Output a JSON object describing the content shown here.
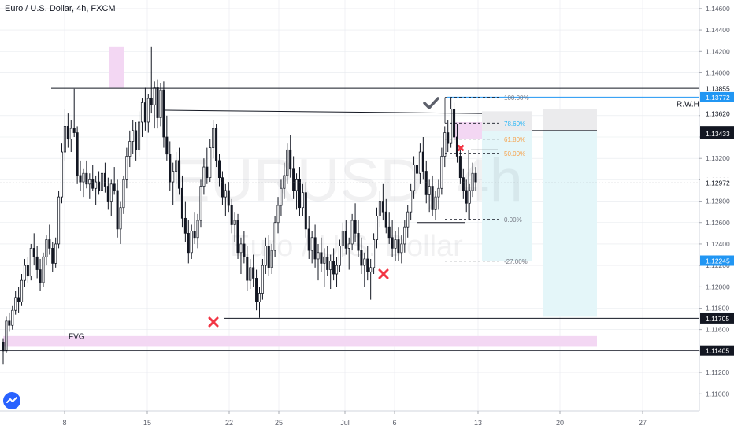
{
  "title": "Euro / U.S. Dollar, 4h, FXCM",
  "watermark": {
    "symbol": "EURUSD, 4h",
    "name": "Euro / U.S. Dollar"
  },
  "colors": {
    "candle": "#131722",
    "grid": "#e6e9ee",
    "level_line": "#131722",
    "blue_line": "#2196f3",
    "fvg_fill": "#f3d7f3",
    "cross": "#f23645",
    "check": "#5d606b",
    "target_zone": "#e4f6f9",
    "stop_zone": "#ebebed",
    "fib_text": "#787b86",
    "fib_blue": "#29b6f6",
    "fib_orange": "#f7a24b",
    "price_tag_dark": "#131722",
    "price_tag_blue": "#2196f3"
  },
  "chart_data": {
    "type": "candlestick",
    "symbol": "EURUSD",
    "timeframe": "4h",
    "source": "FXCM",
    "y_ticks": [
      "1.14600",
      "1.14400",
      "1.14200",
      "1.14000",
      "1.13800",
      "1.13600",
      "1.13400",
      "1.13200",
      "1.13000",
      "1.12800",
      "1.12600",
      "1.12400",
      "1.12200",
      "1.12000",
      "1.11800",
      "1.11600",
      "1.11400",
      "1.11200",
      "1.11000"
    ],
    "ylim": [
      1.1084,
      1.1468
    ],
    "x_ticks": [
      "8",
      "15",
      "22",
      "25",
      "Jul",
      "6",
      "13",
      "20",
      "27"
    ],
    "price_labels": [
      {
        "text": "1.13855",
        "style": "plain"
      },
      {
        "text": "1.13772",
        "style": "blue"
      },
      {
        "text": "1.13641",
        "style": "plain"
      },
      {
        "text": "1.13620",
        "style": "plain"
      },
      {
        "text": "1.13454",
        "style": "dark"
      },
      {
        "text": "1.13433",
        "style": "dark"
      },
      {
        "text": "1.12972",
        "style": "plain"
      },
      {
        "text": "1.12245",
        "style": "blue"
      },
      {
        "text": "1.11712",
        "style": "blue"
      },
      {
        "text": "1.11705",
        "style": "dark"
      },
      {
        "text": "1.11405",
        "style": "dark"
      }
    ],
    "horizontal_levels": [
      {
        "price": 1.13855
      },
      {
        "price": 1.1362
      },
      {
        "price": 1.11705
      },
      {
        "price": 1.11405
      }
    ],
    "annotations": {
      "fvg_label": "FVG",
      "rwh_label": "R.W.H",
      "fib_levels": [
        {
          "label": "100.00%",
          "price": 1.1377
        },
        {
          "label": "78.60%",
          "price": 1.1353
        },
        {
          "label": "61.80%",
          "price": 1.1338
        },
        {
          "label": "50.00%",
          "price": 1.1325
        },
        {
          "label": "0.00%",
          "price": 1.1263
        },
        {
          "label": "-27.00%",
          "price": 1.1224
        }
      ]
    },
    "candles": [
      {
        "o": 1.1148,
        "h": 1.1152,
        "l": 1.1128,
        "c": 1.114
      },
      {
        "o": 1.114,
        "h": 1.1172,
        "l": 1.1138,
        "c": 1.1168
      },
      {
        "o": 1.1168,
        "h": 1.1176,
        "l": 1.1158,
        "c": 1.1164
      },
      {
        "o": 1.1164,
        "h": 1.1182,
        "l": 1.116,
        "c": 1.1178
      },
      {
        "o": 1.1178,
        "h": 1.1196,
        "l": 1.1174,
        "c": 1.119
      },
      {
        "o": 1.119,
        "h": 1.12,
        "l": 1.1176,
        "c": 1.1186
      },
      {
        "o": 1.1186,
        "h": 1.1212,
        "l": 1.1182,
        "c": 1.1206
      },
      {
        "o": 1.1206,
        "h": 1.1226,
        "l": 1.12,
        "c": 1.122
      },
      {
        "o": 1.122,
        "h": 1.1228,
        "l": 1.1204,
        "c": 1.121
      },
      {
        "o": 1.121,
        "h": 1.124,
        "l": 1.1206,
        "c": 1.1236
      },
      {
        "o": 1.1236,
        "h": 1.125,
        "l": 1.122,
        "c": 1.1228
      },
      {
        "o": 1.1228,
        "h": 1.1238,
        "l": 1.1208,
        "c": 1.1216
      },
      {
        "o": 1.1216,
        "h": 1.1226,
        "l": 1.1196,
        "c": 1.1204
      },
      {
        "o": 1.1204,
        "h": 1.1232,
        "l": 1.12,
        "c": 1.1228
      },
      {
        "o": 1.1228,
        "h": 1.1248,
        "l": 1.122,
        "c": 1.1244
      },
      {
        "o": 1.1244,
        "h": 1.1258,
        "l": 1.123,
        "c": 1.1236
      },
      {
        "o": 1.1236,
        "h": 1.1242,
        "l": 1.1214,
        "c": 1.1222
      },
      {
        "o": 1.1222,
        "h": 1.1246,
        "l": 1.1218,
        "c": 1.124
      },
      {
        "o": 1.124,
        "h": 1.129,
        "l": 1.1236,
        "c": 1.1284
      },
      {
        "o": 1.1284,
        "h": 1.1334,
        "l": 1.1278,
        "c": 1.1326
      },
      {
        "o": 1.1326,
        "h": 1.1366,
        "l": 1.1318,
        "c": 1.135
      },
      {
        "o": 1.135,
        "h": 1.1362,
        "l": 1.133,
        "c": 1.1338
      },
      {
        "o": 1.1338,
        "h": 1.1356,
        "l": 1.1326,
        "c": 1.1348
      },
      {
        "o": 1.1348,
        "h": 1.1385,
        "l": 1.134,
        "c": 1.1344
      },
      {
        "o": 1.1344,
        "h": 1.135,
        "l": 1.1296,
        "c": 1.1304
      },
      {
        "o": 1.1304,
        "h": 1.1318,
        "l": 1.129,
        "c": 1.1298
      },
      {
        "o": 1.1298,
        "h": 1.131,
        "l": 1.1284,
        "c": 1.1306
      },
      {
        "o": 1.1306,
        "h": 1.1318,
        "l": 1.1292,
        "c": 1.1296
      },
      {
        "o": 1.1296,
        "h": 1.1306,
        "l": 1.1282,
        "c": 1.13
      },
      {
        "o": 1.13,
        "h": 1.1314,
        "l": 1.129,
        "c": 1.1292
      },
      {
        "o": 1.1292,
        "h": 1.1304,
        "l": 1.1276,
        "c": 1.1298
      },
      {
        "o": 1.1298,
        "h": 1.1308,
        "l": 1.1286,
        "c": 1.129
      },
      {
        "o": 1.129,
        "h": 1.131,
        "l": 1.1284,
        "c": 1.1306
      },
      {
        "o": 1.1306,
        "h": 1.1316,
        "l": 1.1288,
        "c": 1.1294
      },
      {
        "o": 1.1294,
        "h": 1.1302,
        "l": 1.1272,
        "c": 1.128
      },
      {
        "o": 1.128,
        "h": 1.13,
        "l": 1.1266,
        "c": 1.1296
      },
      {
        "o": 1.1296,
        "h": 1.1312,
        "l": 1.1286,
        "c": 1.129
      },
      {
        "o": 1.129,
        "h": 1.13,
        "l": 1.1246,
        "c": 1.1254
      },
      {
        "o": 1.1254,
        "h": 1.128,
        "l": 1.124,
        "c": 1.1274
      },
      {
        "o": 1.1274,
        "h": 1.1304,
        "l": 1.1268,
        "c": 1.13
      },
      {
        "o": 1.13,
        "h": 1.133,
        "l": 1.1292,
        "c": 1.1322
      },
      {
        "o": 1.1322,
        "h": 1.1346,
        "l": 1.1312,
        "c": 1.1336
      },
      {
        "o": 1.1336,
        "h": 1.1356,
        "l": 1.1324,
        "c": 1.1346
      },
      {
        "o": 1.1346,
        "h": 1.1354,
        "l": 1.1318,
        "c": 1.1328
      },
      {
        "o": 1.1328,
        "h": 1.1364,
        "l": 1.1322,
        "c": 1.1354
      },
      {
        "o": 1.1354,
        "h": 1.1376,
        "l": 1.134,
        "c": 1.1372
      },
      {
        "o": 1.1372,
        "h": 1.1386,
        "l": 1.1346,
        "c": 1.1354
      },
      {
        "o": 1.1354,
        "h": 1.138,
        "l": 1.1344,
        "c": 1.1376
      },
      {
        "o": 1.1376,
        "h": 1.1424,
        "l": 1.1362,
        "c": 1.137
      },
      {
        "o": 1.137,
        "h": 1.1392,
        "l": 1.1348,
        "c": 1.1386
      },
      {
        "o": 1.1386,
        "h": 1.1394,
        "l": 1.1348,
        "c": 1.1358
      },
      {
        "o": 1.1358,
        "h": 1.139,
        "l": 1.135,
        "c": 1.1384
      },
      {
        "o": 1.1384,
        "h": 1.1392,
        "l": 1.133,
        "c": 1.134
      },
      {
        "o": 1.134,
        "h": 1.136,
        "l": 1.1318,
        "c": 1.1324
      },
      {
        "o": 1.1324,
        "h": 1.1336,
        "l": 1.129,
        "c": 1.1298
      },
      {
        "o": 1.1298,
        "h": 1.1316,
        "l": 1.1276,
        "c": 1.1308
      },
      {
        "o": 1.1308,
        "h": 1.1326,
        "l": 1.1296,
        "c": 1.1318
      },
      {
        "o": 1.1318,
        "h": 1.133,
        "l": 1.1286,
        "c": 1.1292
      },
      {
        "o": 1.1292,
        "h": 1.1304,
        "l": 1.1256,
        "c": 1.1264
      },
      {
        "o": 1.1264,
        "h": 1.128,
        "l": 1.1242,
        "c": 1.125
      },
      {
        "o": 1.125,
        "h": 1.1262,
        "l": 1.1222,
        "c": 1.1232
      },
      {
        "o": 1.1232,
        "h": 1.1258,
        "l": 1.1226,
        "c": 1.1252
      },
      {
        "o": 1.1252,
        "h": 1.127,
        "l": 1.124,
        "c": 1.1246
      },
      {
        "o": 1.1246,
        "h": 1.1268,
        "l": 1.1236,
        "c": 1.1262
      },
      {
        "o": 1.1262,
        "h": 1.13,
        "l": 1.1256,
        "c": 1.1294
      },
      {
        "o": 1.1294,
        "h": 1.132,
        "l": 1.1286,
        "c": 1.1312
      },
      {
        "o": 1.1312,
        "h": 1.133,
        "l": 1.1296,
        "c": 1.1302
      },
      {
        "o": 1.1302,
        "h": 1.1338,
        "l": 1.1298,
        "c": 1.133
      },
      {
        "o": 1.133,
        "h": 1.1356,
        "l": 1.132,
        "c": 1.1348
      },
      {
        "o": 1.1348,
        "h": 1.1352,
        "l": 1.1312,
        "c": 1.1318
      },
      {
        "o": 1.1318,
        "h": 1.1324,
        "l": 1.1294,
        "c": 1.1302
      },
      {
        "o": 1.1302,
        "h": 1.1308,
        "l": 1.1276,
        "c": 1.1284
      },
      {
        "o": 1.1284,
        "h": 1.1296,
        "l": 1.1266,
        "c": 1.129
      },
      {
        "o": 1.129,
        "h": 1.1298,
        "l": 1.127,
        "c": 1.1276
      },
      {
        "o": 1.1276,
        "h": 1.1282,
        "l": 1.125,
        "c": 1.1258
      },
      {
        "o": 1.1258,
        "h": 1.127,
        "l": 1.1242,
        "c": 1.1262
      },
      {
        "o": 1.1262,
        "h": 1.1268,
        "l": 1.1226,
        "c": 1.1232
      },
      {
        "o": 1.1232,
        "h": 1.1246,
        "l": 1.1212,
        "c": 1.124
      },
      {
        "o": 1.124,
        "h": 1.1252,
        "l": 1.1222,
        "c": 1.1228
      },
      {
        "o": 1.1228,
        "h": 1.1238,
        "l": 1.1196,
        "c": 1.1206
      },
      {
        "o": 1.1206,
        "h": 1.1226,
        "l": 1.1198,
        "c": 1.1218
      },
      {
        "o": 1.1218,
        "h": 1.123,
        "l": 1.12,
        "c": 1.1208
      },
      {
        "o": 1.1208,
        "h": 1.1216,
        "l": 1.1178,
        "c": 1.1186
      },
      {
        "o": 1.1186,
        "h": 1.12,
        "l": 1.1171,
        "c": 1.1194
      },
      {
        "o": 1.1194,
        "h": 1.1226,
        "l": 1.1188,
        "c": 1.122
      },
      {
        "o": 1.122,
        "h": 1.1246,
        "l": 1.1212,
        "c": 1.1238
      },
      {
        "o": 1.1238,
        "h": 1.1248,
        "l": 1.121,
        "c": 1.1218
      },
      {
        "o": 1.1218,
        "h": 1.124,
        "l": 1.1212,
        "c": 1.1234
      },
      {
        "o": 1.1234,
        "h": 1.1266,
        "l": 1.1228,
        "c": 1.126
      },
      {
        "o": 1.126,
        "h": 1.1284,
        "l": 1.125,
        "c": 1.1276
      },
      {
        "o": 1.1276,
        "h": 1.13,
        "l": 1.1266,
        "c": 1.1292
      },
      {
        "o": 1.1292,
        "h": 1.1316,
        "l": 1.1282,
        "c": 1.1304
      },
      {
        "o": 1.1304,
        "h": 1.1334,
        "l": 1.1296,
        "c": 1.1328
      },
      {
        "o": 1.1328,
        "h": 1.1342,
        "l": 1.1302,
        "c": 1.131
      },
      {
        "o": 1.131,
        "h": 1.1322,
        "l": 1.1282,
        "c": 1.129
      },
      {
        "o": 1.129,
        "h": 1.1306,
        "l": 1.1272,
        "c": 1.13
      },
      {
        "o": 1.13,
        "h": 1.1312,
        "l": 1.1266,
        "c": 1.1274
      },
      {
        "o": 1.1274,
        "h": 1.1296,
        "l": 1.1266,
        "c": 1.1288
      },
      {
        "o": 1.1288,
        "h": 1.1298,
        "l": 1.1246,
        "c": 1.1254
      },
      {
        "o": 1.1254,
        "h": 1.1266,
        "l": 1.1226,
        "c": 1.1234
      },
      {
        "o": 1.1234,
        "h": 1.1252,
        "l": 1.1222,
        "c": 1.1246
      },
      {
        "o": 1.1246,
        "h": 1.1258,
        "l": 1.1218,
        "c": 1.1226
      },
      {
        "o": 1.1226,
        "h": 1.124,
        "l": 1.1206,
        "c": 1.1232
      },
      {
        "o": 1.1232,
        "h": 1.1246,
        "l": 1.1214,
        "c": 1.1222
      },
      {
        "o": 1.1222,
        "h": 1.1236,
        "l": 1.12,
        "c": 1.1228
      },
      {
        "o": 1.1228,
        "h": 1.1238,
        "l": 1.121,
        "c": 1.1216
      },
      {
        "o": 1.1216,
        "h": 1.123,
        "l": 1.1198,
        "c": 1.1224
      },
      {
        "o": 1.1224,
        "h": 1.1236,
        "l": 1.1206,
        "c": 1.1212
      },
      {
        "o": 1.1212,
        "h": 1.1228,
        "l": 1.12,
        "c": 1.122
      },
      {
        "o": 1.122,
        "h": 1.1244,
        "l": 1.1214,
        "c": 1.1238
      },
      {
        "o": 1.1238,
        "h": 1.126,
        "l": 1.1228,
        "c": 1.1252
      },
      {
        "o": 1.1252,
        "h": 1.1262,
        "l": 1.123,
        "c": 1.1236
      },
      {
        "o": 1.1236,
        "h": 1.1246,
        "l": 1.1216,
        "c": 1.124
      },
      {
        "o": 1.124,
        "h": 1.1268,
        "l": 1.1234,
        "c": 1.1262
      },
      {
        "o": 1.1262,
        "h": 1.1278,
        "l": 1.1242,
        "c": 1.125
      },
      {
        "o": 1.125,
        "h": 1.1262,
        "l": 1.1228,
        "c": 1.1234
      },
      {
        "o": 1.1234,
        "h": 1.1246,
        "l": 1.1212,
        "c": 1.122
      },
      {
        "o": 1.122,
        "h": 1.1232,
        "l": 1.12,
        "c": 1.1226
      },
      {
        "o": 1.1226,
        "h": 1.1238,
        "l": 1.1206,
        "c": 1.1214
      },
      {
        "o": 1.1214,
        "h": 1.1226,
        "l": 1.1188,
        "c": 1.1218
      },
      {
        "o": 1.1218,
        "h": 1.125,
        "l": 1.1212,
        "c": 1.1244
      },
      {
        "o": 1.1244,
        "h": 1.1274,
        "l": 1.1236,
        "c": 1.1266
      },
      {
        "o": 1.1266,
        "h": 1.129,
        "l": 1.1256,
        "c": 1.128
      },
      {
        "o": 1.128,
        "h": 1.1296,
        "l": 1.1262,
        "c": 1.127
      },
      {
        "o": 1.127,
        "h": 1.1282,
        "l": 1.125,
        "c": 1.1256
      },
      {
        "o": 1.1256,
        "h": 1.127,
        "l": 1.124,
        "c": 1.1246
      },
      {
        "o": 1.1246,
        "h": 1.1262,
        "l": 1.1228,
        "c": 1.1236
      },
      {
        "o": 1.1236,
        "h": 1.1252,
        "l": 1.1224,
        "c": 1.1244
      },
      {
        "o": 1.1244,
        "h": 1.1256,
        "l": 1.1224,
        "c": 1.1232
      },
      {
        "o": 1.1232,
        "h": 1.1248,
        "l": 1.1222,
        "c": 1.124
      },
      {
        "o": 1.124,
        "h": 1.1262,
        "l": 1.1232,
        "c": 1.1256
      },
      {
        "o": 1.1256,
        "h": 1.1276,
        "l": 1.1246,
        "c": 1.127
      },
      {
        "o": 1.127,
        "h": 1.1296,
        "l": 1.1262,
        "c": 1.129
      },
      {
        "o": 1.129,
        "h": 1.1322,
        "l": 1.1282,
        "c": 1.1314
      },
      {
        "o": 1.1314,
        "h": 1.1338,
        "l": 1.1298,
        "c": 1.1306
      },
      {
        "o": 1.1306,
        "h": 1.1334,
        "l": 1.1296,
        "c": 1.1326
      },
      {
        "o": 1.1326,
        "h": 1.134,
        "l": 1.13,
        "c": 1.1308
      },
      {
        "o": 1.1308,
        "h": 1.1318,
        "l": 1.1278,
        "c": 1.1286
      },
      {
        "o": 1.1286,
        "h": 1.13,
        "l": 1.127,
        "c": 1.1294
      },
      {
        "o": 1.1294,
        "h": 1.1304,
        "l": 1.1266,
        "c": 1.1272
      },
      {
        "o": 1.1272,
        "h": 1.129,
        "l": 1.1262,
        "c": 1.1284
      },
      {
        "o": 1.1284,
        "h": 1.13,
        "l": 1.1272,
        "c": 1.1292
      },
      {
        "o": 1.1292,
        "h": 1.133,
        "l": 1.1286,
        "c": 1.1322
      },
      {
        "o": 1.1322,
        "h": 1.135,
        "l": 1.1312,
        "c": 1.1344
      },
      {
        "o": 1.1344,
        "h": 1.1356,
        "l": 1.1326,
        "c": 1.1334
      },
      {
        "o": 1.1334,
        "h": 1.1377,
        "l": 1.133,
        "c": 1.1366
      },
      {
        "o": 1.1366,
        "h": 1.1372,
        "l": 1.1334,
        "c": 1.134
      },
      {
        "o": 1.134,
        "h": 1.1352,
        "l": 1.1316,
        "c": 1.1322
      },
      {
        "o": 1.1322,
        "h": 1.133,
        "l": 1.1296,
        "c": 1.1302
      },
      {
        "o": 1.1302,
        "h": 1.131,
        "l": 1.1282,
        "c": 1.129
      },
      {
        "o": 1.129,
        "h": 1.13,
        "l": 1.127,
        "c": 1.1278
      },
      {
        "o": 1.1278,
        "h": 1.1296,
        "l": 1.1262,
        "c": 1.129
      },
      {
        "o": 1.129,
        "h": 1.1316,
        "l": 1.1284,
        "c": 1.1306
      },
      {
        "o": 1.1306,
        "h": 1.1312,
        "l": 1.129,
        "c": 1.1298
      }
    ]
  }
}
